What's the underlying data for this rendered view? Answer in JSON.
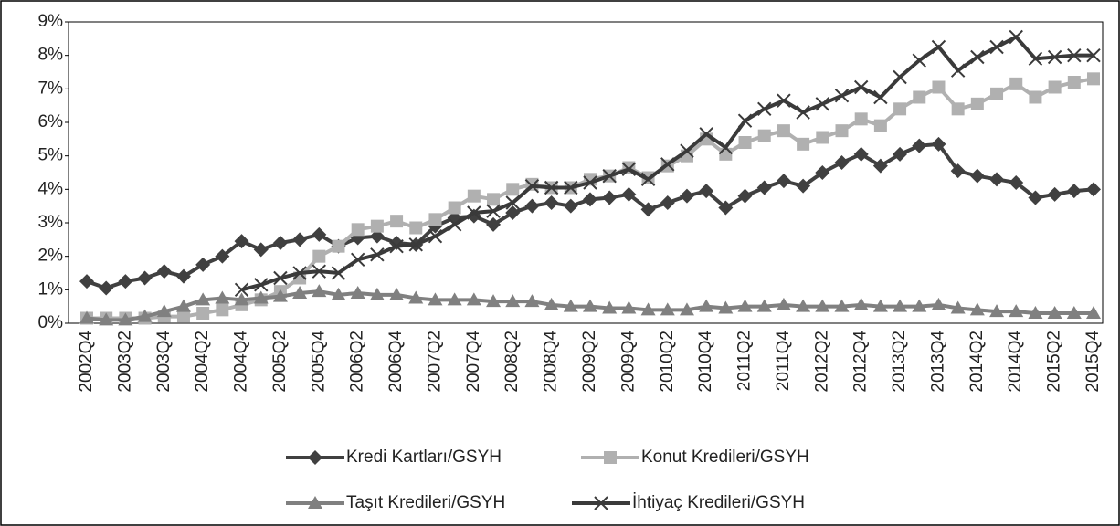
{
  "chart_data": {
    "type": "line",
    "categories": [
      "2002Q4",
      null,
      "2003Q2",
      null,
      "2003Q4",
      null,
      "2004Q2",
      null,
      "2004Q4",
      null,
      "2005Q2",
      null,
      "2005Q4",
      null,
      "2006Q2",
      null,
      "2006Q4",
      null,
      "2007Q2",
      null,
      "2007Q4",
      null,
      "2008Q2",
      null,
      "2008Q4",
      null,
      "2009Q2",
      null,
      "2009Q4",
      null,
      "2010Q2",
      null,
      "2010Q4",
      null,
      "2011Q2",
      null,
      "2011Q4",
      null,
      "2012Q2",
      null,
      "2012Q4",
      null,
      "2013Q2",
      null,
      "2013Q4",
      null,
      "2014Q2",
      null,
      "2014Q4",
      null,
      "2015Q2",
      null,
      "2015Q4"
    ],
    "ylim": [
      0,
      9
    ],
    "yticks": [
      {
        "value": 0,
        "label": "0%"
      },
      {
        "value": 1,
        "label": "1%"
      },
      {
        "value": 2,
        "label": "2%"
      },
      {
        "value": 3,
        "label": "3%"
      },
      {
        "value": 4,
        "label": "4%"
      },
      {
        "value": 5,
        "label": "5%"
      },
      {
        "value": 6,
        "label": "6%"
      },
      {
        "value": 7,
        "label": "7%"
      },
      {
        "value": 8,
        "label": "8%"
      },
      {
        "value": 9,
        "label": "9%"
      }
    ],
    "series": [
      {
        "name": "Kredi Kartları/GSYH",
        "color": "#404040",
        "marker": "diamond",
        "values": [
          1.25,
          1.05,
          1.25,
          1.35,
          1.55,
          1.4,
          1.75,
          2.0,
          2.45,
          2.2,
          2.4,
          2.5,
          2.65,
          2.3,
          2.55,
          2.6,
          2.4,
          2.35,
          2.9,
          3.15,
          3.2,
          2.95,
          3.3,
          3.5,
          3.6,
          3.5,
          3.7,
          3.75,
          3.85,
          3.4,
          3.6,
          3.8,
          3.95,
          3.45,
          3.8,
          4.05,
          4.25,
          4.1,
          4.5,
          4.8,
          5.05,
          4.7,
          5.05,
          5.3,
          5.35,
          4.55,
          4.4,
          4.3,
          4.2,
          3.75,
          3.85,
          3.95,
          4.0
        ]
      },
      {
        "name": "Konut Kredileri/GSYH",
        "color": "#b0b0b0",
        "marker": "square",
        "values": [
          0.15,
          0.15,
          0.15,
          0.15,
          0.2,
          0.2,
          0.3,
          0.4,
          0.55,
          0.7,
          0.95,
          1.35,
          2.0,
          2.3,
          2.8,
          2.9,
          3.05,
          2.85,
          3.1,
          3.45,
          3.8,
          3.7,
          4.0,
          4.15,
          4.05,
          4.05,
          4.3,
          4.4,
          4.65,
          4.35,
          4.7,
          5.0,
          5.5,
          5.05,
          5.4,
          5.6,
          5.75,
          5.35,
          5.55,
          5.75,
          6.1,
          5.9,
          6.4,
          6.75,
          7.05,
          6.4,
          6.55,
          6.85,
          7.15,
          6.75,
          7.05,
          7.2,
          7.3
        ]
      },
      {
        "name": "Taşıt Kredileri/GSYH",
        "color": "#808080",
        "marker": "triangle",
        "values": [
          0.15,
          0.1,
          0.1,
          0.2,
          0.35,
          0.5,
          0.7,
          0.75,
          0.7,
          0.75,
          0.8,
          0.9,
          0.95,
          0.85,
          0.9,
          0.85,
          0.85,
          0.75,
          0.7,
          0.7,
          0.7,
          0.65,
          0.65,
          0.65,
          0.55,
          0.5,
          0.5,
          0.45,
          0.45,
          0.4,
          0.4,
          0.4,
          0.5,
          0.45,
          0.5,
          0.5,
          0.55,
          0.5,
          0.5,
          0.5,
          0.55,
          0.5,
          0.5,
          0.5,
          0.55,
          0.45,
          0.4,
          0.35,
          0.35,
          0.3,
          0.3,
          0.3,
          0.3
        ]
      },
      {
        "name": "İhtiyaç Kredileri/GSYH",
        "color": "#3a3a3a",
        "marker": "x",
        "values": [
          null,
          null,
          null,
          null,
          null,
          null,
          null,
          null,
          1.0,
          1.15,
          1.35,
          1.5,
          1.55,
          1.5,
          1.9,
          2.05,
          2.3,
          2.35,
          2.6,
          2.95,
          3.3,
          3.35,
          3.6,
          4.1,
          4.05,
          4.05,
          4.2,
          4.4,
          4.6,
          4.3,
          4.75,
          5.15,
          5.65,
          5.25,
          6.05,
          6.4,
          6.65,
          6.3,
          6.55,
          6.8,
          7.05,
          6.75,
          7.35,
          7.85,
          8.25,
          7.55,
          7.95,
          8.25,
          8.55,
          7.9,
          7.95,
          8.0,
          8.0
        ]
      }
    ]
  }
}
